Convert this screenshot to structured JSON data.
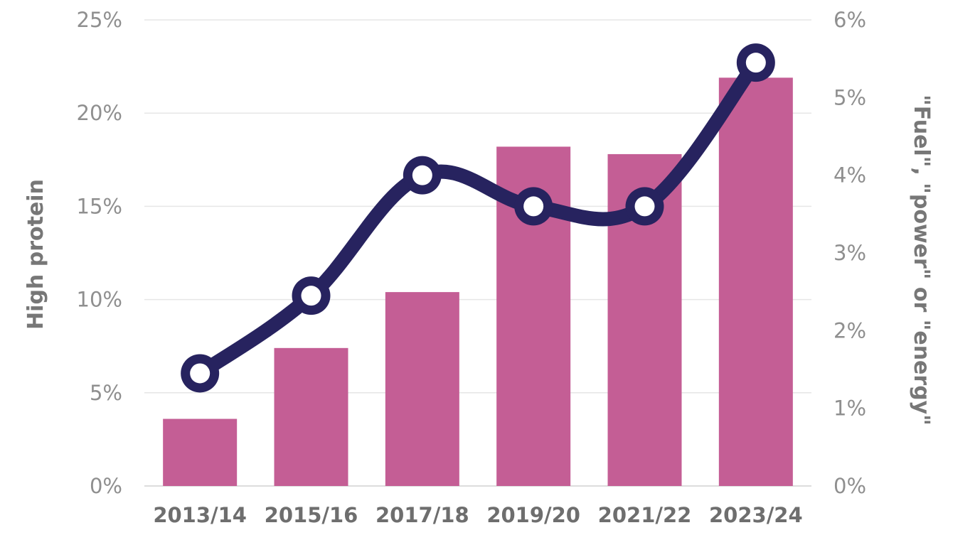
{
  "chart_data": {
    "type": "bar",
    "categories": [
      "2013/14",
      "2015/16",
      "2017/18",
      "2019/20",
      "2021/22",
      "2023/24"
    ],
    "series": [
      {
        "axis": "left",
        "type": "bar",
        "values": [
          3.6,
          7.4,
          10.4,
          18.2,
          17.8,
          21.9
        ],
        "color": "#c45e95"
      },
      {
        "axis": "right",
        "type": "line",
        "values": [
          1.45,
          2.45,
          4.0,
          3.6,
          3.6,
          5.45
        ],
        "color": "#27235f"
      }
    ],
    "ylabel": "High protein",
    "y2label": "\"Fuel\", \"power\" or \"energy\"",
    "ylim": [
      0,
      25
    ],
    "y2lim": [
      0,
      6
    ],
    "yticks": [
      "0%",
      "5%",
      "10%",
      "15%",
      "20%",
      "25%"
    ],
    "y2ticks": [
      "0%",
      "1%",
      "2%",
      "3%",
      "4%",
      "5%",
      "6%"
    ],
    "grid": true,
    "legend": "none"
  }
}
